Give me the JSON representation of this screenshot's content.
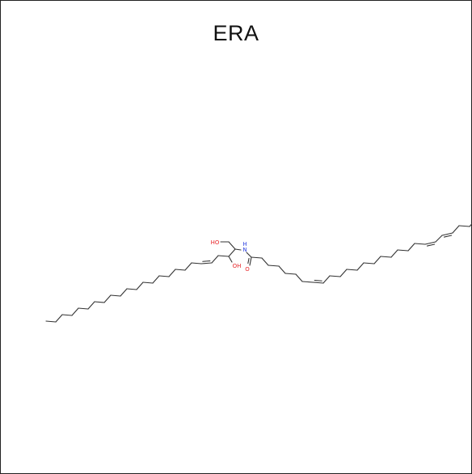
{
  "title": "ERA",
  "atom_labels": {
    "hydroxyl_top": "HO",
    "hydroxyl_mid": "OH",
    "nitrogen": "H\nN",
    "nitrogen_h": "H",
    "nitrogen_n": "N",
    "carbonyl_o": "O"
  },
  "colors": {
    "oxygen": "#e8262a",
    "nitrogen": "#2b3fe0",
    "bond": "#333333"
  }
}
